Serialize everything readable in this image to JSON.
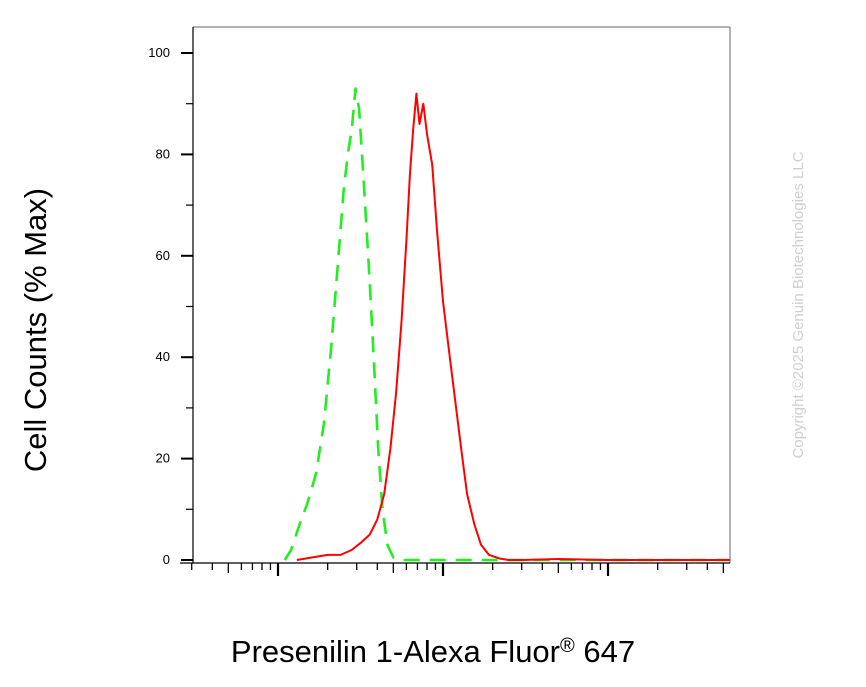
{
  "chart_data": {
    "type": "line",
    "title": "",
    "xlabel_main": "Presenilin 1-Alexa Fluor",
    "xlabel_mark": "®",
    "xlabel_tail": " 647",
    "ylabel": "Cell Counts (% Max)",
    "xscale": "log",
    "xlim": [
      1,
      1000
    ],
    "ylim": [
      0,
      105
    ],
    "yticks": [
      0,
      20,
      40,
      60,
      80,
      100
    ],
    "grid": false,
    "watermark": "Copyright ©2025 Genuin Biotechnologies LLC",
    "series": [
      {
        "color": "#22ee22",
        "dash": true,
        "x": [
          1.1,
          1.2,
          1.35,
          1.5,
          1.7,
          1.9,
          2.1,
          2.3,
          2.5,
          2.65,
          2.8,
          2.95,
          3.1,
          3.3,
          3.55,
          3.8,
          4.05,
          4.3,
          4.6,
          5.0,
          5.5,
          6.0,
          7.0,
          8.0,
          10,
          20,
          100,
          1000
        ],
        "y": [
          0,
          2,
          7,
          11,
          17,
          27,
          42,
          58,
          73,
          80,
          85,
          93,
          89,
          75,
          58,
          40,
          22,
          10,
          3,
          0.5,
          0,
          0,
          0,
          0,
          0,
          0,
          0,
          0
        ]
      },
      {
        "color": "#ff0000",
        "dash": false,
        "x": [
          1.3,
          1.6,
          2.0,
          2.4,
          2.8,
          3.2,
          3.6,
          4.0,
          4.4,
          4.8,
          5.2,
          5.6,
          6.0,
          6.3,
          6.6,
          6.9,
          7.2,
          7.6,
          8.0,
          8.6,
          9.2,
          10.0,
          11.0,
          12.0,
          13.0,
          14.0,
          15.5,
          17.0,
          19.0,
          22.0,
          25.0,
          30,
          50,
          100,
          1000
        ],
        "y": [
          0,
          0.5,
          1,
          1,
          2,
          3.5,
          5,
          8,
          13,
          22,
          33,
          47,
          63,
          76,
          85,
          92,
          86,
          90,
          84,
          78,
          65,
          51,
          40,
          30,
          21,
          13,
          7,
          3,
          1,
          0.3,
          0,
          0,
          0.2,
          0,
          0
        ]
      }
    ]
  }
}
